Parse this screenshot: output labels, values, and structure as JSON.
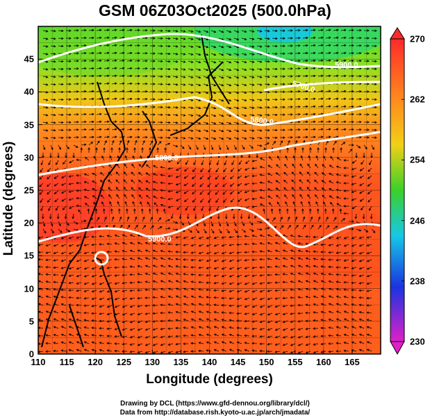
{
  "title": "GSM 06Z03Oct2025 (500.0hPa)",
  "x_axis": {
    "label": "Longitude (degrees)",
    "range": [
      110,
      170
    ],
    "ticks": [
      "110",
      "115",
      "120",
      "125",
      "130",
      "135",
      "140",
      "145",
      "150",
      "155",
      "160",
      "165"
    ]
  },
  "y_axis": {
    "label": "Latitude (degrees)",
    "range": [
      0,
      50
    ],
    "ticks": [
      "0",
      "5",
      "10",
      "15",
      "20",
      "25",
      "30",
      "35",
      "40",
      "45"
    ]
  },
  "colorbar": {
    "ticks": [
      "230",
      "238",
      "246",
      "254",
      "262",
      "270"
    ],
    "range": [
      230,
      270
    ]
  },
  "contours": {
    "labels": [
      "5900.0",
      "5800.0",
      "5700.0",
      "5800.0",
      "5900.0"
    ],
    "lines": [
      {
        "name": "5900-south",
        "label": "5900.0"
      },
      {
        "name": "5800",
        "label": "5800.0"
      },
      {
        "name": "5700",
        "label": "5700.0"
      },
      {
        "name": "5800-east",
        "label": "5800.0"
      },
      {
        "name": "5900-north",
        "label": "5900.0"
      }
    ]
  },
  "footer": {
    "line1": "Drawing by DCL (https://www.gfd-dennou.org/library/dcl/)",
    "line2": "Data from http://database.rish.kyoto-u.ac.jp/arch/jmadata/"
  },
  "colors": {
    "warm": "#ff3a1e",
    "orange": "#ff8a1e",
    "yellow": "#e8d814",
    "green": "#3cd02a",
    "cyan": "#16c8e6",
    "blue": "#1a34e0",
    "magenta": "#e020c8",
    "contour": "#ffffff"
  }
}
